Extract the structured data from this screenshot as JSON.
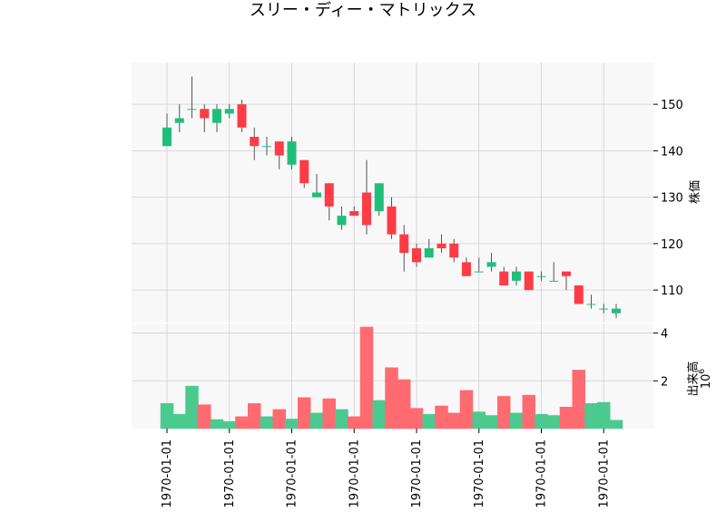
{
  "chart_data": {
    "type": "candlestick",
    "title": "スリー・ディー・マトリックス",
    "colors": {
      "up": "#1fbf7a",
      "down": "#ff3b45",
      "up_volume": "#4cc98f",
      "down_volume": "#ff6b70",
      "panel_bg": "#f8f8f8",
      "grid": "#d0d0d0"
    },
    "grid": true,
    "price_panel": {
      "ylabel": "株価",
      "yaxis_side": "right",
      "ylim": [
        103,
        159
      ],
      "yticks": [
        110,
        120,
        130,
        140,
        150
      ]
    },
    "volume_panel": {
      "ylabel": "出来高",
      "scale_label": "10",
      "scale_exponent": "6",
      "yaxis_side": "right",
      "ylim": [
        0,
        4.4
      ],
      "yticks": [
        2,
        4
      ]
    },
    "x_tick_label": "1970-01-01",
    "x_tick_count": 8,
    "candles": [
      {
        "o": 141,
        "h": 148,
        "l": 141,
        "c": 145,
        "v": 1.05
      },
      {
        "o": 146,
        "h": 150,
        "l": 144,
        "c": 147,
        "v": 0.6
      },
      {
        "o": 149,
        "h": 156,
        "l": 147,
        "c": 149,
        "v": 1.78
      },
      {
        "o": 149,
        "h": 150,
        "l": 144,
        "c": 147,
        "v": 1.0
      },
      {
        "o": 146,
        "h": 150,
        "l": 144,
        "c": 149,
        "v": 0.38
      },
      {
        "o": 148,
        "h": 150,
        "l": 147,
        "c": 149,
        "v": 0.3
      },
      {
        "o": 150,
        "h": 151,
        "l": 144,
        "c": 145,
        "v": 0.5
      },
      {
        "o": 143,
        "h": 145,
        "l": 138,
        "c": 141,
        "v": 1.05
      },
      {
        "o": 141,
        "h": 143,
        "l": 139,
        "c": 141,
        "v": 0.5
      },
      {
        "o": 142,
        "h": 142,
        "l": 136,
        "c": 139,
        "v": 0.8
      },
      {
        "o": 137,
        "h": 143,
        "l": 136,
        "c": 142,
        "v": 0.4
      },
      {
        "o": 138,
        "h": 138,
        "l": 132,
        "c": 133,
        "v": 1.3
      },
      {
        "o": 130,
        "h": 135,
        "l": 130,
        "c": 131,
        "v": 0.65
      },
      {
        "o": 133,
        "h": 133,
        "l": 125,
        "c": 128,
        "v": 1.25
      },
      {
        "o": 124,
        "h": 128,
        "l": 123,
        "c": 126,
        "v": 0.8
      },
      {
        "o": 127,
        "h": 128,
        "l": 126,
        "c": 126,
        "v": 0.5
      },
      {
        "o": 131,
        "h": 138,
        "l": 122,
        "c": 124,
        "v": 4.25
      },
      {
        "o": 127,
        "h": 133,
        "l": 126,
        "c": 133,
        "v": 1.18
      },
      {
        "o": 128,
        "h": 130,
        "l": 121,
        "c": 122,
        "v": 2.55
      },
      {
        "o": 122,
        "h": 124,
        "l": 114,
        "c": 118,
        "v": 2.05
      },
      {
        "o": 119,
        "h": 120,
        "l": 115,
        "c": 116,
        "v": 0.85
      },
      {
        "o": 117,
        "h": 121,
        "l": 117,
        "c": 119,
        "v": 0.6
      },
      {
        "o": 120,
        "h": 122,
        "l": 118,
        "c": 119,
        "v": 0.95
      },
      {
        "o": 120,
        "h": 121,
        "l": 116,
        "c": 117,
        "v": 0.65
      },
      {
        "o": 116,
        "h": 117,
        "l": 113,
        "c": 113,
        "v": 1.6
      },
      {
        "o": 114,
        "h": 117,
        "l": 114,
        "c": 114,
        "v": 0.7
      },
      {
        "o": 115,
        "h": 118,
        "l": 114,
        "c": 116,
        "v": 0.55
      },
      {
        "o": 114,
        "h": 115,
        "l": 111,
        "c": 111,
        "v": 1.35
      },
      {
        "o": 112,
        "h": 115,
        "l": 111,
        "c": 114,
        "v": 0.65
      },
      {
        "o": 114,
        "h": 114,
        "l": 110,
        "c": 110,
        "v": 1.4
      },
      {
        "o": 113,
        "h": 114,
        "l": 112,
        "c": 113,
        "v": 0.6
      },
      {
        "o": 112,
        "h": 116,
        "l": 112,
        "c": 112,
        "v": 0.55
      },
      {
        "o": 114,
        "h": 114,
        "l": 110,
        "c": 113,
        "v": 0.9
      },
      {
        "o": 111,
        "h": 111,
        "l": 107,
        "c": 107,
        "v": 2.45
      },
      {
        "o": 107,
        "h": 109,
        "l": 106,
        "c": 107,
        "v": 1.05
      },
      {
        "o": 106,
        "h": 107,
        "l": 105,
        "c": 106,
        "v": 1.1
      },
      {
        "o": 105,
        "h": 107,
        "l": 104,
        "c": 106,
        "v": 0.35
      }
    ]
  }
}
